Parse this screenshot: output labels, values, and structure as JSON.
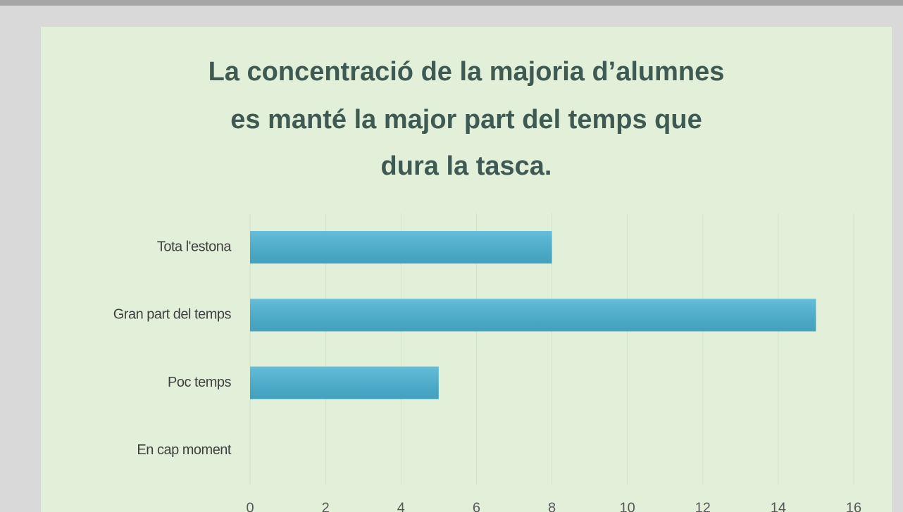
{
  "chart_data": {
    "type": "barh",
    "title": [
      "La concentració de la majoria d’alumnes",
      "es manté la major part del temps que",
      "dura la tasca."
    ],
    "categories": [
      "Tota l'estona",
      "Gran part del temps",
      "Poc temps",
      "En cap moment"
    ],
    "values": [
      8,
      15,
      5,
      0
    ],
    "color": "#4ab3d4",
    "xlim": [
      0,
      16
    ],
    "xticks": [
      0,
      2,
      4,
      6,
      8,
      10,
      12,
      14,
      16
    ],
    "grid": true
  }
}
